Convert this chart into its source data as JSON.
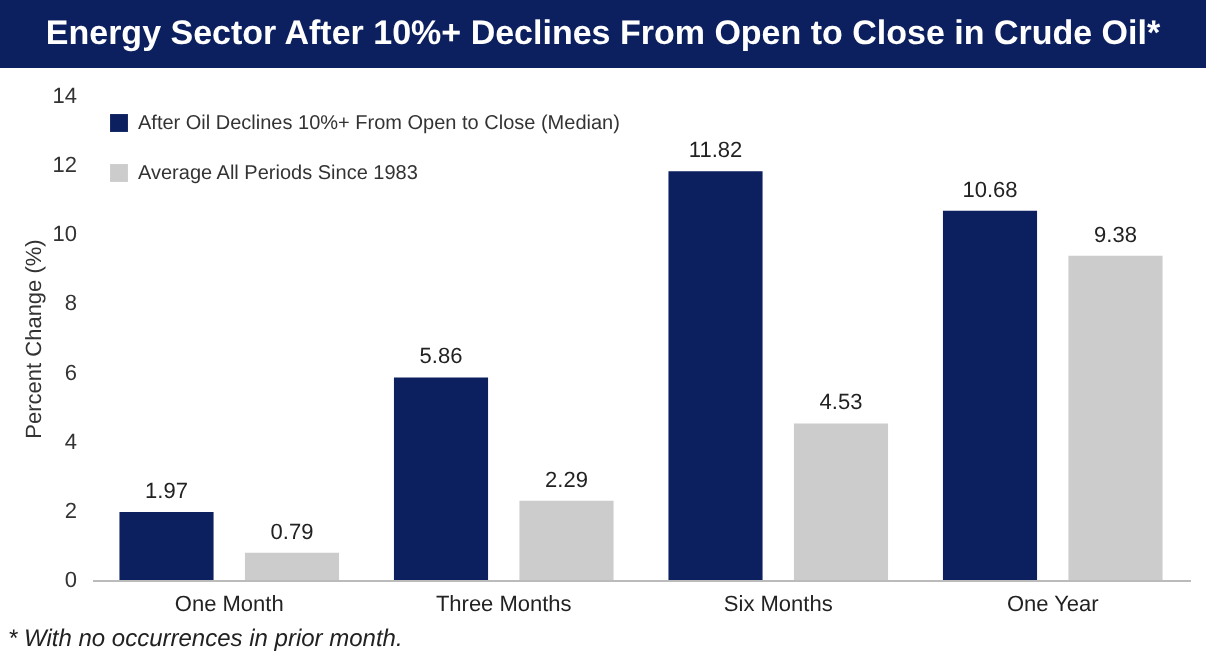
{
  "chart_data": {
    "type": "bar",
    "title": "Energy Sector After 10%+ Declines From Open to Close in Crude Oil*",
    "ylabel": "Percent Change (%)",
    "categories": [
      "One Month",
      "Three Months",
      "Six Months",
      "One Year"
    ],
    "series": [
      {
        "name": "After Oil Declines 10%+ From Open to Close (Median)",
        "color": "#0c1f5e",
        "values": [
          1.97,
          5.86,
          11.82,
          10.68
        ]
      },
      {
        "name": "Average All Periods Since 1983",
        "color": "#cccccc",
        "values": [
          0.79,
          2.29,
          4.53,
          9.38
        ]
      }
    ],
    "ylim": [
      0,
      14
    ],
    "yticks": [
      0,
      2,
      4,
      6,
      8,
      10,
      12,
      14
    ],
    "grid": false,
    "legend": "top left",
    "data_labels": true,
    "annotations": [
      "* With no occurrences in prior month."
    ]
  }
}
